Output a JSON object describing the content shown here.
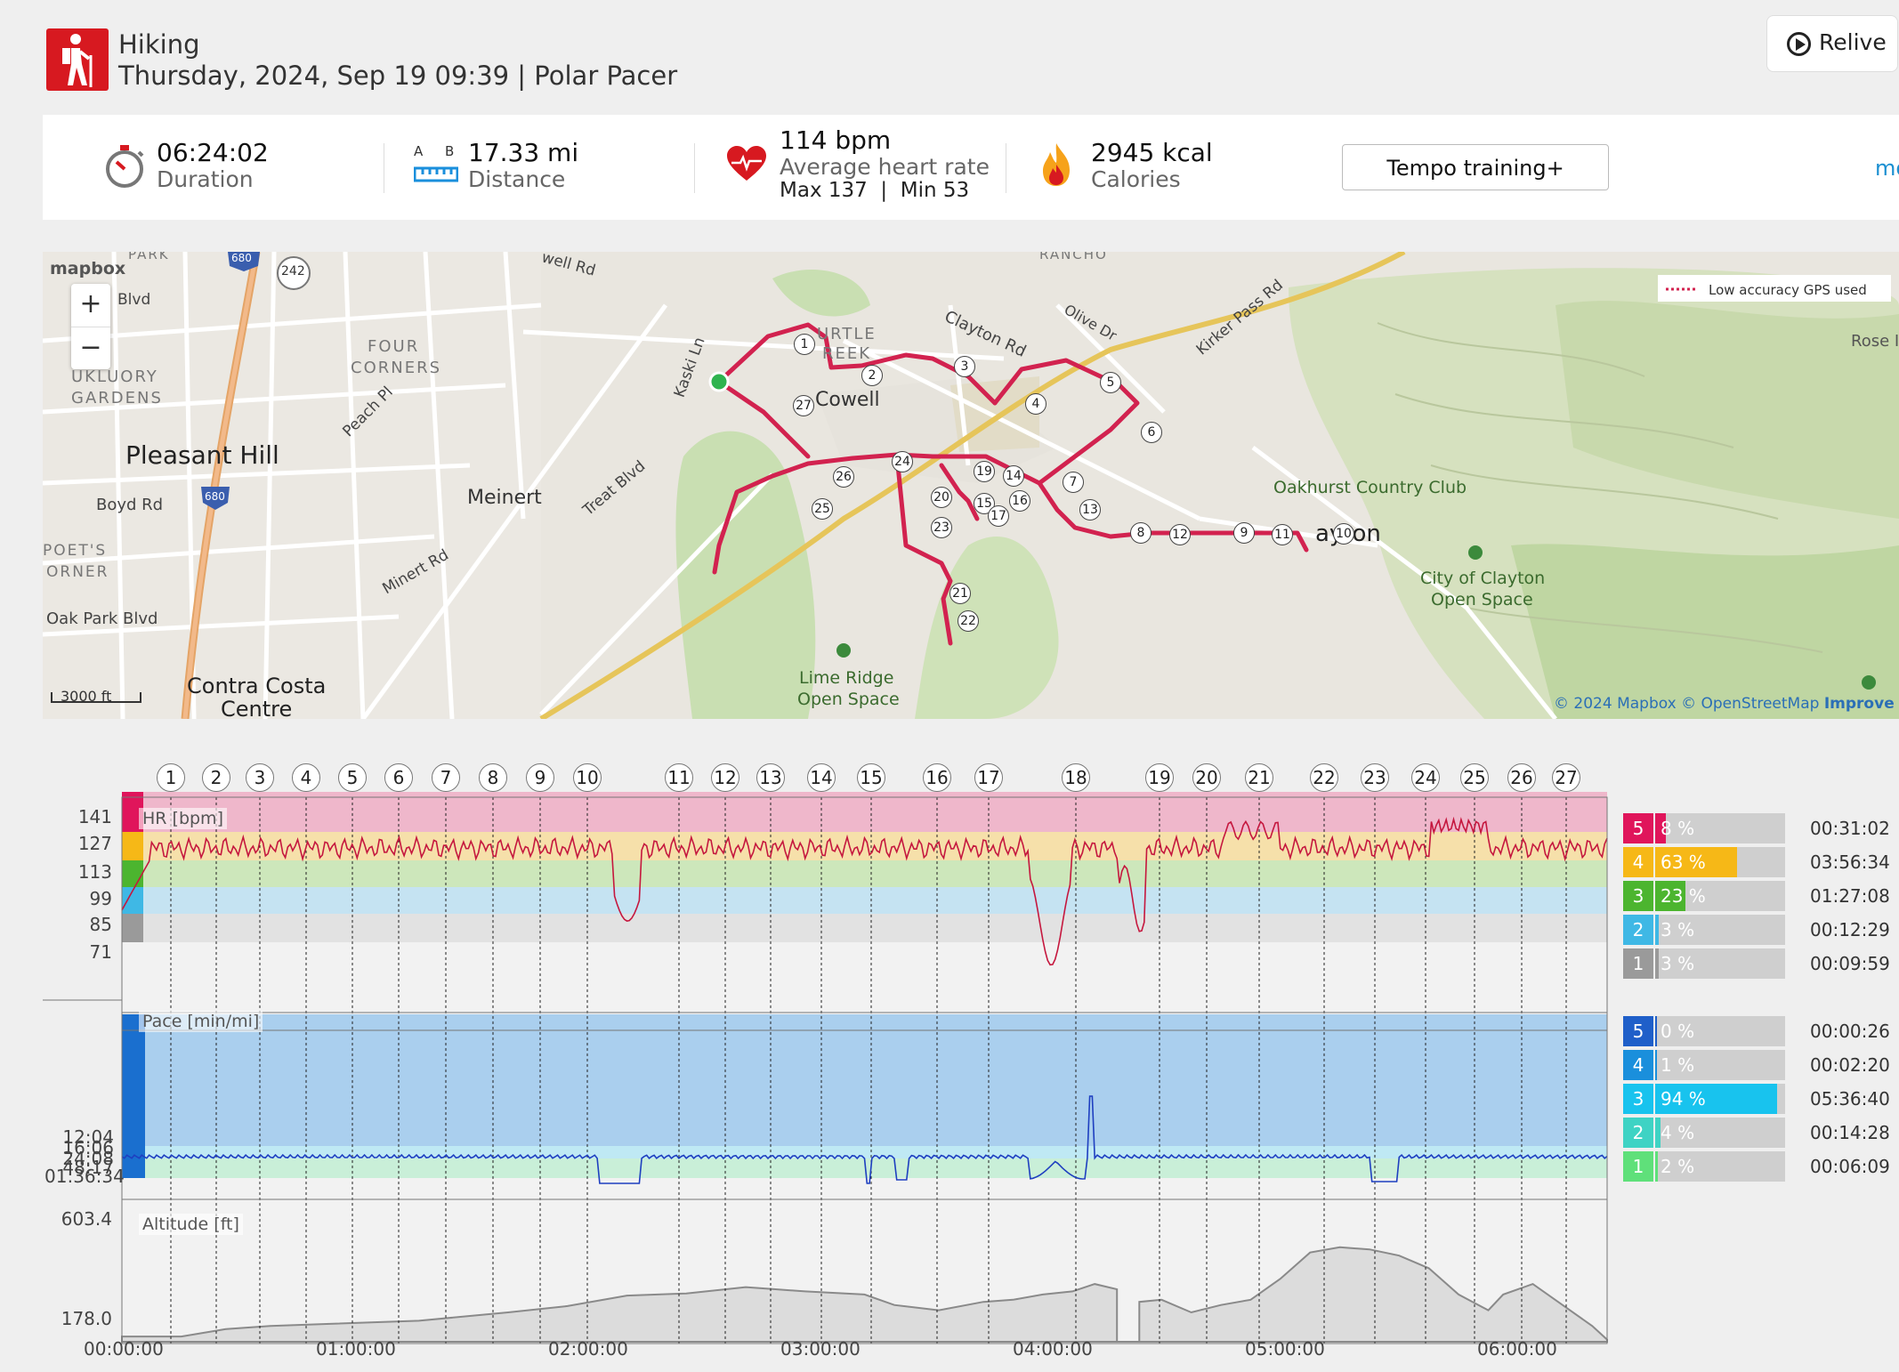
{
  "header": {
    "sport": "Hiking",
    "subtitle": "Thursday, 2024, Sep 19 09:39 | Polar Pacer",
    "relive_label": "Relive"
  },
  "stats": {
    "duration_value": "06:24:02",
    "duration_label": "Duration",
    "distance_ab": "A B",
    "distance_value": "17.33 mi",
    "distance_label": "Distance",
    "hr_value": "114 bpm",
    "hr_label": "Average heart rate",
    "hr_maxmin": "Max 137  |  Min 53",
    "calories_value": "2945 kcal",
    "calories_label": "Calories",
    "training_button": "Tempo training+",
    "more_link": "mo"
  },
  "map": {
    "logo": "mapbox",
    "legend": "Low accuracy GPS used",
    "scale": "3000 ft",
    "attribution_1": "© 2024 Mapbox",
    "attribution_2": "© OpenStreetMap",
    "attribution_3": "Improve t",
    "zoom_in": "+",
    "zoom_out": "−",
    "labels": {
      "pleasant_hill": "Pleasant Hill",
      "four_corners_1": "FOUR",
      "four_corners_2": "CORNERS",
      "gregory_1": "UKLUORY",
      "gregory_2": "GARDENS",
      "meinert": "Meinert",
      "cowell": "Cowell",
      "turtle_1": "URTLE",
      "turtle_2": "REEK",
      "boyd": "Boyd Rd",
      "poets_1": "POET'S",
      "poets_2": "ORNER",
      "oak_park": "Oak Park Blvd",
      "contra_1": "Contra Costa",
      "contra_2": "Centre",
      "minert": "Minert Rd",
      "treat": "Treat Blvd",
      "peach": "Peach Pl",
      "kaski": "Kaski Ln",
      "clayton_rd": "Clayton Rd",
      "olive": "Olive Dr",
      "kirker": "Kirker Pass Rd",
      "oakhurst": "Oakhurst Country Club",
      "clayton": "ayton",
      "city_clayton_1": "City of Clayton",
      "city_clayton_2": "Open Space",
      "lime_1": "Lime Ridge",
      "lime_2": "Open Space",
      "rose": "Rose I",
      "blvd": "Blvd",
      "well_rd": "well Rd",
      "rancho": "RANCHO",
      "park": "PARK",
      "shield_242": "242",
      "shield_680a": "680",
      "shield_680b": "680"
    },
    "markers": [
      "1",
      "2",
      "3",
      "4",
      "5",
      "6",
      "7",
      "8",
      "9",
      "10",
      "11",
      "12",
      "13",
      "14",
      "15",
      "16",
      "17",
      "19",
      "20",
      "21",
      "22",
      "23",
      "24",
      "25",
      "26",
      "27"
    ]
  },
  "charts": {
    "laps": [
      "1",
      "2",
      "3",
      "4",
      "5",
      "6",
      "7",
      "8",
      "9",
      "10",
      "11",
      "12",
      "13",
      "14",
      "15",
      "16",
      "17",
      "18",
      "19",
      "20",
      "21",
      "22",
      "23",
      "24",
      "25",
      "26",
      "27"
    ],
    "hr_title": "HR [bpm]",
    "hr_ticks": [
      "141",
      "127",
      "113",
      "99",
      "85",
      "71"
    ],
    "pace_title": "Pace [min/mi]",
    "pace_ticks": [
      "12:04",
      "16:06",
      "24:08",
      "48:17",
      "01:36:34"
    ],
    "alt_title": "Altitude [ft]",
    "alt_ticks": [
      "603.4",
      "178.0"
    ],
    "x_ticks": [
      "00:00:00",
      "01:00:00",
      "02:00:00",
      "03:00:00",
      "04:00:00",
      "05:00:00",
      "06:00:00"
    ],
    "hr_zones": [
      {
        "zone": "5",
        "pct": "8 %",
        "time": "00:31:02",
        "fill": 0.08,
        "color": "#e0155b"
      },
      {
        "zone": "4",
        "pct": "63 %",
        "time": "03:56:34",
        "fill": 0.63,
        "color": "#f6b817"
      },
      {
        "zone": "3",
        "pct": "23 %",
        "time": "01:27:08",
        "fill": 0.23,
        "color": "#4cb52f"
      },
      {
        "zone": "2",
        "pct": "3 %",
        "time": "00:12:29",
        "fill": 0.03,
        "color": "#3fb8e5"
      },
      {
        "zone": "1",
        "pct": "3 %",
        "time": "00:09:59",
        "fill": 0.03,
        "color": "#9a9a9a"
      }
    ],
    "pace_zones": [
      {
        "zone": "5",
        "pct": "0 %",
        "time": "00:00:26",
        "fill": 0.0,
        "color": "#1f5fc9"
      },
      {
        "zone": "4",
        "pct": "1 %",
        "time": "00:02:20",
        "fill": 0.01,
        "color": "#1a8fdc"
      },
      {
        "zone": "3",
        "pct": "94 %",
        "time": "05:36:40",
        "fill": 0.94,
        "color": "#18c3ee"
      },
      {
        "zone": "2",
        "pct": "4 %",
        "time": "00:14:28",
        "fill": 0.04,
        "color": "#3ed3c4"
      },
      {
        "zone": "1",
        "pct": "2 %",
        "time": "00:06:09",
        "fill": 0.02,
        "color": "#5fe07a"
      }
    ]
  }
}
